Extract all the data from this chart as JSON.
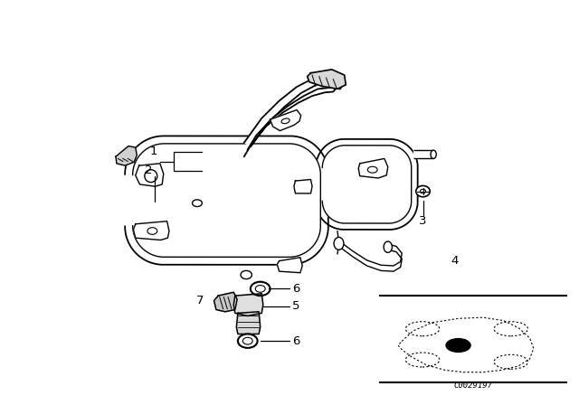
{
  "bg_color": "#ffffff",
  "line_color": "#000000",
  "fig_width": 6.4,
  "fig_height": 4.48,
  "dpi": 100,
  "car_code": "C0029197",
  "label_fs": 9.5,
  "leader_lw": 0.9,
  "pipe_lw": 1.3,
  "pipe_lw2": 1.0
}
